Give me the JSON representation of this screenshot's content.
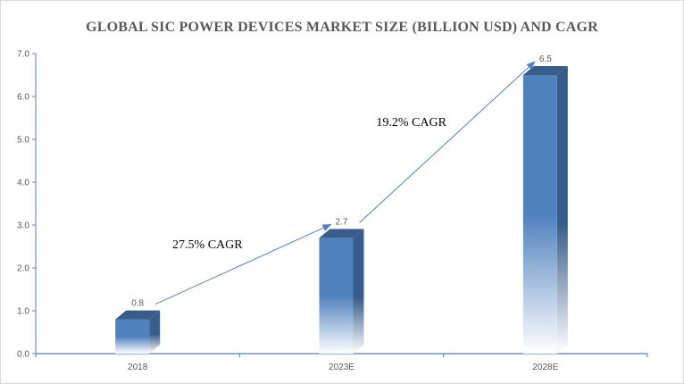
{
  "chart_data": {
    "type": "bar",
    "title": "GLOBAL SIC POWER DEVICES MARKET SIZE (BILLION USD) AND CAGR",
    "categories": [
      "2018",
      "2023E",
      "2028E"
    ],
    "values": [
      0.8,
      2.7,
      6.5
    ],
    "data_labels": [
      "0.8",
      "2.7",
      "6.5"
    ],
    "ylim": [
      0,
      7
    ],
    "yticks": [
      "0.0",
      "1.0",
      "2.0",
      "3.0",
      "4.0",
      "5.0",
      "6.0",
      "7.0"
    ],
    "xlabel": "",
    "ylabel": "",
    "grid": false,
    "style": "3d-column-gradient",
    "bar_color": "#4f81bd",
    "arrow_color": "#4f81bd",
    "annotations": [
      {
        "text": "27.5% CAGR",
        "from": "2018",
        "to": "2023E"
      },
      {
        "text": "19.2% CAGR",
        "from": "2023E",
        "to": "2028E"
      }
    ]
  }
}
